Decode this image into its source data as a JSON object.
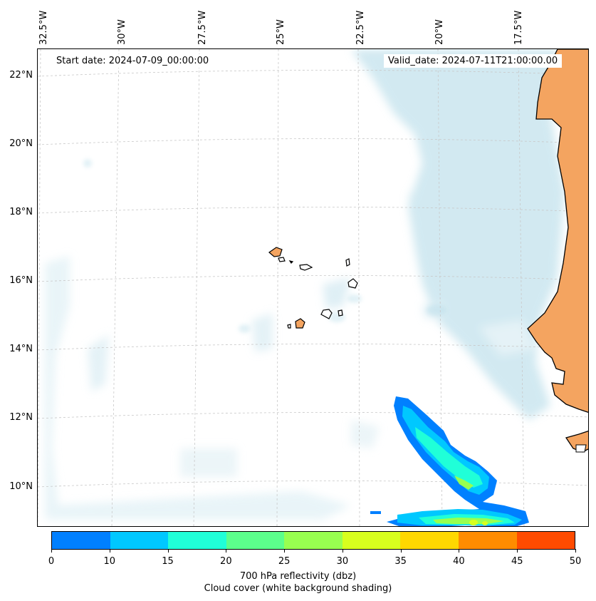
{
  "header": {
    "start_date": "Start date: 2024-07-09_00:00:00",
    "valid_date": "Valid_date: 2024-07-11T21:00:00.00"
  },
  "axes": {
    "lon_labels": [
      "32.5°W",
      "30°W",
      "27.5°W",
      "25°W",
      "22.5°W",
      "20°W",
      "17.5°W"
    ],
    "lat_labels": [
      "22°N",
      "20°N",
      "18°N",
      "16°N",
      "14°N",
      "12°N",
      "10°N"
    ]
  },
  "colorbar": {
    "label_line1": "700 hPa reflectivity (dbz)",
    "label_line2": "Cloud cover (white background shading)",
    "ticks": [
      "0",
      "10",
      "15",
      "20",
      "25",
      "30",
      "35",
      "40",
      "45",
      "50"
    ],
    "colors": [
      "#0080ff",
      "#00c8ff",
      "#20ffd8",
      "#5cff8c",
      "#98ff50",
      "#d8ff1e",
      "#ffd800",
      "#ff8c00",
      "#ff4b00"
    ]
  },
  "map_colors": {
    "land": "#f4a460",
    "cloud": "#add8e6",
    "grid": "#c8c8c8"
  }
}
